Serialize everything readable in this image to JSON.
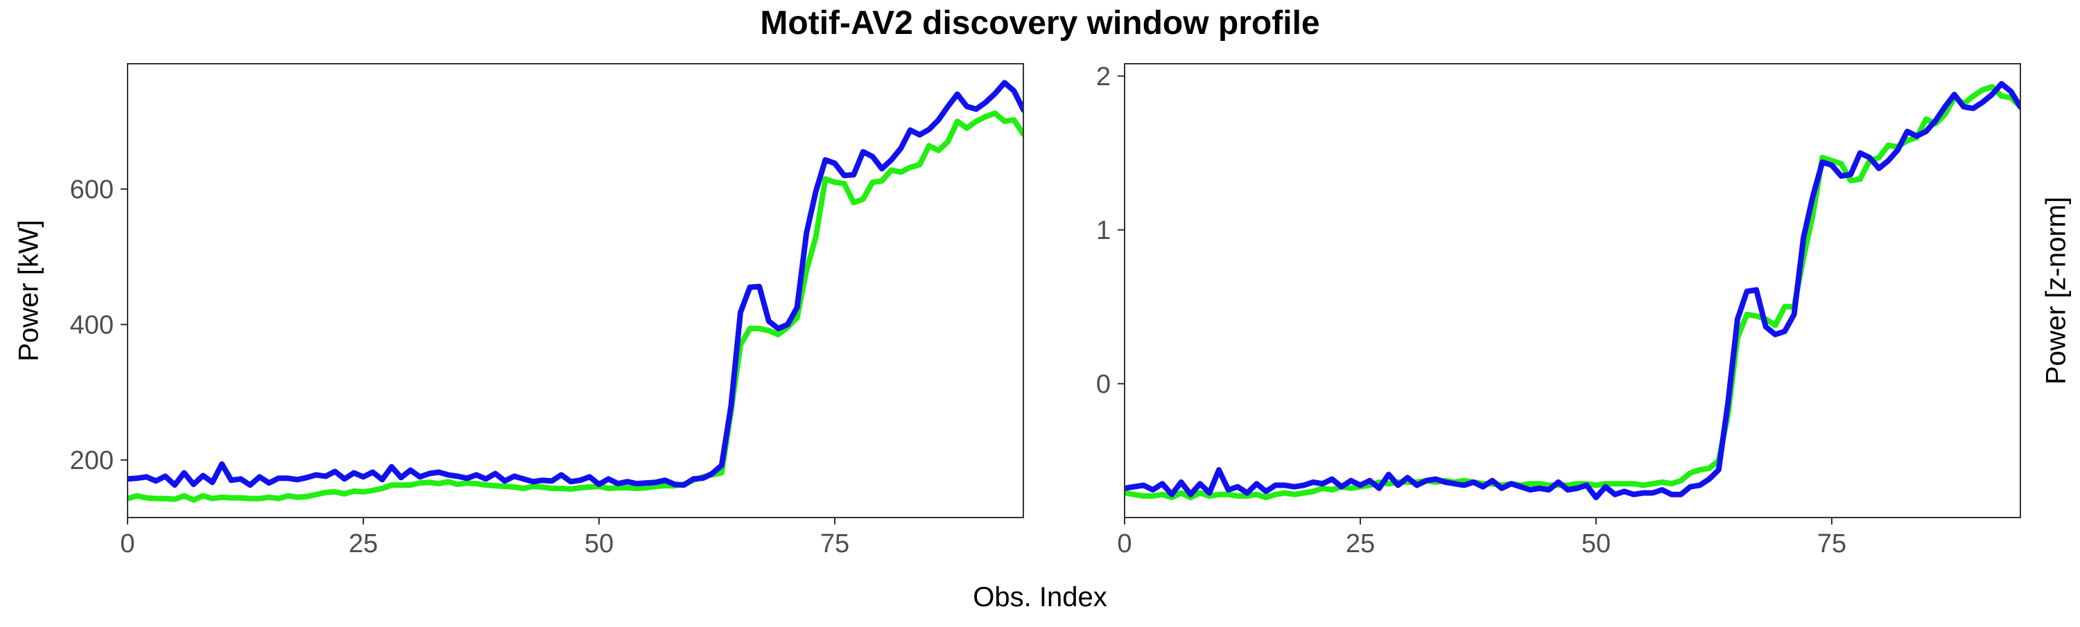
{
  "figure": {
    "title": "Motif-AV2 discovery window profile",
    "xlabel": "Obs. Index"
  },
  "colors": {
    "series_green": "#22ee11",
    "series_blue": "#1111ee",
    "axis": "#333333",
    "tick_label": "#4d4d4d"
  },
  "chart_data": [
    {
      "type": "line",
      "panel": "left",
      "title": "",
      "xlabel": "Obs. Index",
      "ylabel": "Power [kW]",
      "ylabel_side": "left",
      "xlim": [
        0,
        95
      ],
      "ylim": [
        115,
        785
      ],
      "xticks": [
        0,
        25,
        50,
        75
      ],
      "yticks": [
        200,
        400,
        600
      ],
      "grid": false,
      "legend": "none",
      "series": [
        {
          "color": "#22ee11",
          "values": [
            143,
            147,
            144,
            143,
            143,
            142,
            147,
            141,
            147,
            143,
            145,
            144,
            144,
            143,
            143,
            145,
            143,
            147,
            145,
            146,
            149,
            152,
            153,
            150,
            154,
            153,
            155,
            158,
            163,
            163,
            163,
            166,
            167,
            165,
            168,
            164,
            166,
            165,
            163,
            162,
            161,
            160,
            158,
            161,
            160,
            158,
            158,
            157,
            159,
            160,
            161,
            158,
            159,
            159,
            158,
            159,
            161,
            162,
            162,
            164,
            170,
            175,
            178,
            181,
            272,
            370,
            394,
            394,
            391,
            385,
            396,
            410,
            480,
            530,
            615,
            610,
            608,
            580,
            585,
            610,
            612,
            628,
            625,
            632,
            636,
            664,
            657,
            670,
            700,
            690,
            700,
            707,
            712,
            700,
            702,
            681,
            700
          ]
        },
        {
          "color": "#1111ee",
          "values": [
            172,
            173,
            175,
            169,
            176,
            163,
            181,
            164,
            177,
            167,
            194,
            170,
            172,
            163,
            175,
            166,
            173,
            173,
            171,
            174,
            178,
            176,
            183,
            172,
            181,
            175,
            182,
            171,
            190,
            174,
            185,
            175,
            180,
            182,
            178,
            176,
            173,
            178,
            172,
            180,
            169,
            176,
            172,
            168,
            170,
            169,
            178,
            168,
            170,
            175,
            164,
            172,
            165,
            168,
            165,
            166,
            167,
            170,
            164,
            163,
            172,
            173,
            180,
            192,
            280,
            418,
            455,
            456,
            405,
            394,
            400,
            425,
            535,
            597,
            643,
            638,
            620,
            621,
            655,
            648,
            630,
            643,
            660,
            687,
            680,
            688,
            702,
            722,
            740,
            722,
            718,
            728,
            741,
            757,
            745,
            717,
            703
          ]
        }
      ]
    },
    {
      "type": "line",
      "panel": "right",
      "title": "",
      "xlabel": "Obs. Index",
      "ylabel": "Power [z-norm]",
      "ylabel_side": "right",
      "xlim": [
        0,
        95
      ],
      "ylim": [
        -0.87,
        2.08
      ],
      "xticks": [
        0,
        25,
        50,
        75
      ],
      "yticks": [
        0,
        1,
        2
      ],
      "grid": false,
      "legend": "none",
      "series": [
        {
          "color": "#22ee11",
          "values": [
            -0.71,
            -0.72,
            -0.73,
            -0.73,
            -0.72,
            -0.74,
            -0.71,
            -0.74,
            -0.71,
            -0.73,
            -0.72,
            -0.72,
            -0.73,
            -0.73,
            -0.72,
            -0.74,
            -0.72,
            -0.71,
            -0.72,
            -0.71,
            -0.7,
            -0.68,
            -0.69,
            -0.67,
            -0.68,
            -0.67,
            -0.66,
            -0.64,
            -0.65,
            -0.64,
            -0.64,
            -0.64,
            -0.63,
            -0.64,
            -0.63,
            -0.64,
            -0.63,
            -0.64,
            -0.65,
            -0.65,
            -0.66,
            -0.65,
            -0.66,
            -0.65,
            -0.65,
            -0.66,
            -0.66,
            -0.66,
            -0.65,
            -0.65,
            -0.66,
            -0.65,
            -0.65,
            -0.65,
            -0.65,
            -0.66,
            -0.65,
            -0.64,
            -0.65,
            -0.63,
            -0.58,
            -0.56,
            -0.55,
            -0.5,
            -0.2,
            0.3,
            0.45,
            0.44,
            0.42,
            0.38,
            0.5,
            0.5,
            0.82,
            1.1,
            1.47,
            1.45,
            1.43,
            1.32,
            1.33,
            1.45,
            1.47,
            1.55,
            1.54,
            1.58,
            1.6,
            1.72,
            1.69,
            1.75,
            1.86,
            1.82,
            1.87,
            1.91,
            1.93,
            1.87,
            1.86,
            1.8,
            1.87
          ]
        },
        {
          "color": "#1111ee",
          "values": [
            -0.68,
            -0.67,
            -0.66,
            -0.69,
            -0.65,
            -0.72,
            -0.64,
            -0.72,
            -0.65,
            -0.71,
            -0.56,
            -0.69,
            -0.67,
            -0.71,
            -0.65,
            -0.7,
            -0.66,
            -0.66,
            -0.67,
            -0.66,
            -0.64,
            -0.65,
            -0.62,
            -0.67,
            -0.63,
            -0.66,
            -0.63,
            -0.68,
            -0.59,
            -0.66,
            -0.61,
            -0.66,
            -0.63,
            -0.62,
            -0.64,
            -0.65,
            -0.66,
            -0.64,
            -0.67,
            -0.63,
            -0.68,
            -0.65,
            -0.67,
            -0.69,
            -0.68,
            -0.69,
            -0.64,
            -0.69,
            -0.68,
            -0.66,
            -0.74,
            -0.67,
            -0.72,
            -0.7,
            -0.72,
            -0.71,
            -0.71,
            -0.69,
            -0.72,
            -0.72,
            -0.67,
            -0.66,
            -0.62,
            -0.56,
            -0.12,
            0.42,
            0.6,
            0.61,
            0.37,
            0.32,
            0.34,
            0.45,
            0.95,
            1.22,
            1.44,
            1.42,
            1.35,
            1.36,
            1.5,
            1.47,
            1.4,
            1.45,
            1.52,
            1.64,
            1.61,
            1.64,
            1.71,
            1.8,
            1.88,
            1.8,
            1.79,
            1.83,
            1.88,
            1.95,
            1.9,
            1.8,
            1.73
          ]
        }
      ]
    }
  ]
}
